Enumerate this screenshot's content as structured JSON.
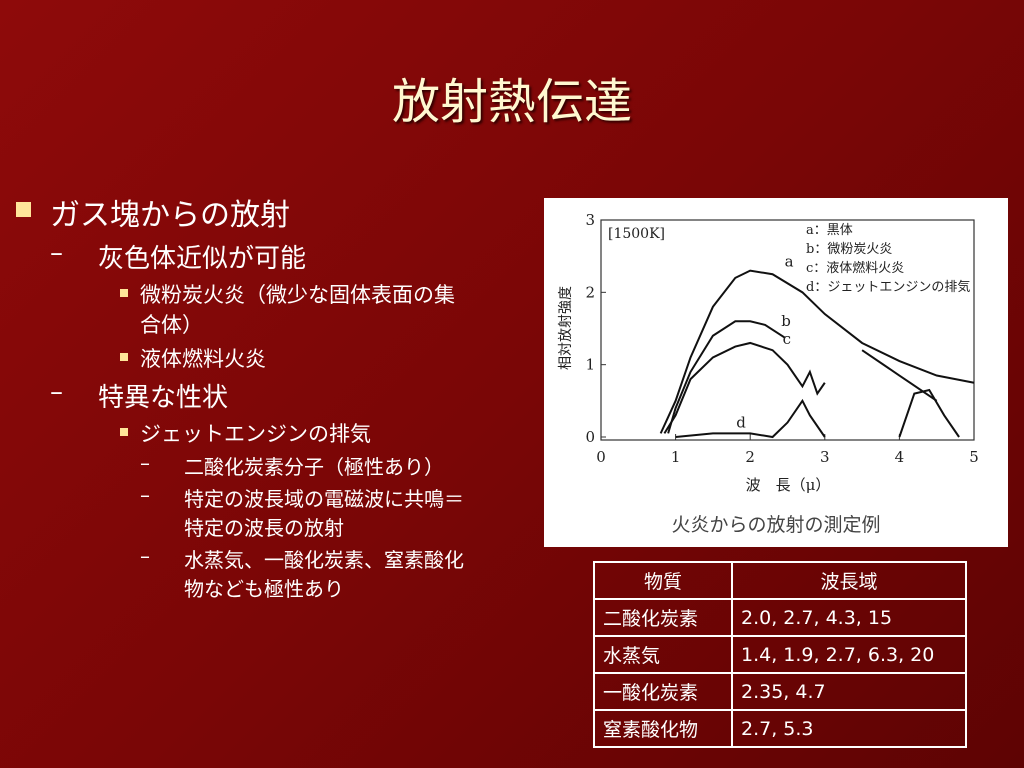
{
  "title": "放射熱伝達",
  "bullets": [
    {
      "text": "ガス塊からの放射",
      "children": [
        {
          "text": "灰色体近似が可能",
          "children": [
            {
              "text": "微粉炭火炎（微少な固体表面の集合体）"
            },
            {
              "text": "液体燃料火炎"
            }
          ]
        },
        {
          "text": "特異な性状",
          "children": [
            {
              "text": "ジェットエンジンの排気",
              "children": [
                {
                  "text": "二酸化炭素分子（極性あり）"
                },
                {
                  "text": "特定の波長域の電磁波に共鳴＝特定の波長の放射"
                },
                {
                  "text": "水蒸気、一酸化炭素、窒素酸化物なども極性あり"
                }
              ]
            }
          ]
        }
      ]
    }
  ],
  "chart_data": {
    "type": "line",
    "annotation": "[1500K]",
    "ylabel": "相対放射強度",
    "xlabel": "波　長（μ）",
    "caption": "火炎からの放射の測定例",
    "legend": [
      "a：黒体",
      "b：微粉炭火炎",
      "c：液体燃料火炎",
      "d：ジェットエンジンの排気"
    ],
    "xlim": [
      0,
      5
    ],
    "xticks": [
      0,
      1,
      2,
      3,
      4,
      5
    ],
    "ylim": [
      0,
      3
    ],
    "yticks": [
      0,
      1,
      2,
      3
    ],
    "color": "#111111",
    "series": [
      {
        "name": "a",
        "x": [
          0.8,
          1.0,
          1.2,
          1.5,
          1.8,
          2.0,
          2.3,
          2.7,
          3.0,
          3.5,
          4.0,
          4.5,
          5.0
        ],
        "values": [
          0.05,
          0.5,
          1.1,
          1.8,
          2.2,
          2.3,
          2.25,
          2.0,
          1.7,
          1.3,
          1.05,
          0.85,
          0.75
        ]
      },
      {
        "name": "b",
        "x": [
          0.9,
          1.0,
          1.2,
          1.5,
          1.8,
          2.0,
          2.2,
          2.47,
          3.0,
          3.5,
          4.0,
          4.5
        ],
        "values": [
          0.05,
          0.4,
          0.9,
          1.4,
          1.6,
          1.6,
          1.55,
          1.37,
          null,
          1.2,
          0.85,
          0.5
        ]
      },
      {
        "name": "c",
        "x": [
          0.85,
          1.0,
          1.2,
          1.5,
          1.8,
          2.0,
          2.3,
          2.5,
          2.7,
          2.8,
          2.9,
          3.0
        ],
        "values": [
          0.05,
          0.3,
          0.8,
          1.1,
          1.25,
          1.3,
          1.2,
          1.0,
          0.7,
          0.9,
          0.6,
          0.75
        ]
      },
      {
        "name": "d",
        "x": [
          1.0,
          1.5,
          2.0,
          2.3,
          2.5,
          2.7,
          2.8,
          3.0,
          3.5,
          4.0,
          4.2,
          4.4,
          4.6,
          4.8
        ],
        "values": [
          0.0,
          0.05,
          0.05,
          0.0,
          0.2,
          0.5,
          0.3,
          0.0,
          null,
          0.0,
          0.6,
          0.65,
          0.3,
          0.0
        ]
      }
    ]
  },
  "table": {
    "header": [
      "物質",
      "波長域"
    ],
    "rows": [
      [
        "二酸化炭素",
        "2.0, 2.7, 4.3, 15"
      ],
      [
        "水蒸気",
        "1.4, 1.9, 2.7, 6.3, 20"
      ],
      [
        "一酸化炭素",
        "2.35, 4.7"
      ],
      [
        "窒素酸化物",
        "2.7, 5.3"
      ]
    ]
  }
}
